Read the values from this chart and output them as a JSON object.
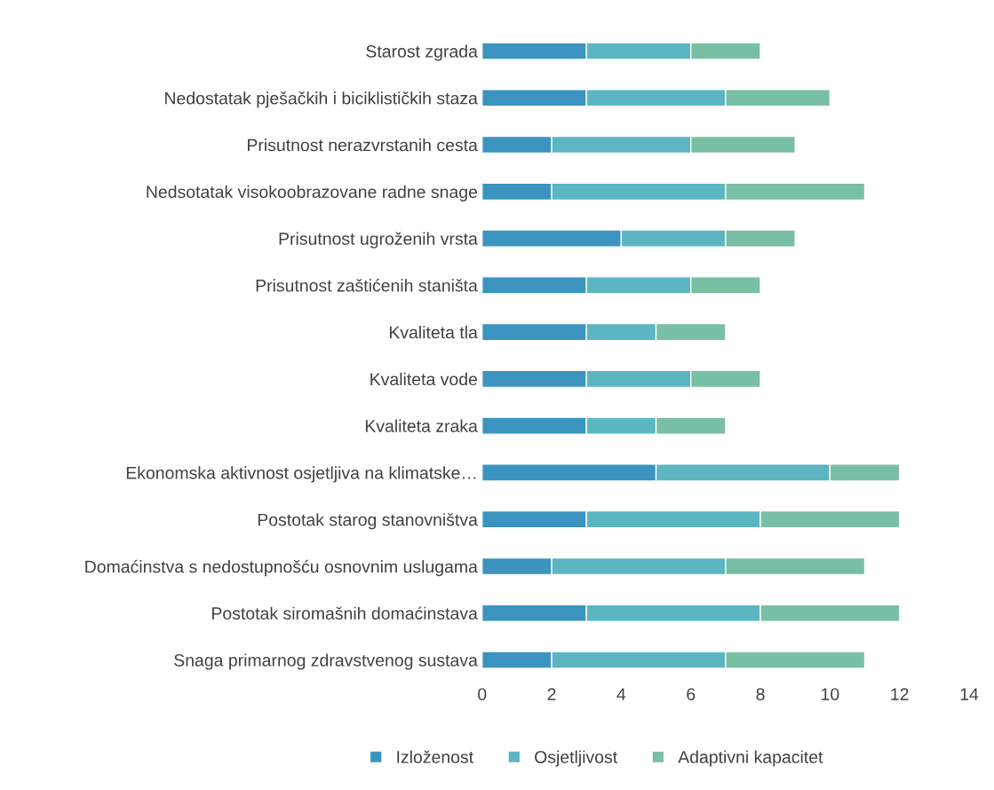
{
  "chart_data": {
    "type": "bar",
    "orientation": "horizontal",
    "stacked": true,
    "categories": [
      "Starost zgrada",
      "Nedostatak pješačkih i biciklističkih staza",
      "Prisutnost nerazvrstanih cesta",
      "Nedsotatak visokoobrazovane radne snage",
      "Prisutnost ugroženih vrsta",
      "Prisutnost zaštićenih staništa",
      "Kvaliteta tla",
      "Kvaliteta vode",
      "Kvaliteta zraka",
      "Ekonomska aktivnost osjetljiva na klimatske…",
      "Postotak starog stanovništva",
      "Domaćinstva s nedostupnošću osnovnim uslugama",
      "Postotak siromašnih domaćinstava",
      "Snaga primarnog zdravstvenog sustava"
    ],
    "series": [
      {
        "name": "Izloženost",
        "color": "#3a94bf",
        "values": [
          3,
          3,
          2,
          2,
          4,
          3,
          3,
          3,
          3,
          5,
          3,
          2,
          3,
          2
        ]
      },
      {
        "name": "Osjetljivost",
        "color": "#5bb6c2",
        "values": [
          3,
          4,
          4,
          5,
          3,
          3,
          2,
          3,
          2,
          5,
          5,
          5,
          5,
          5
        ]
      },
      {
        "name": "Adaptivni kapacitet",
        "color": "#79bfa3",
        "values": [
          2,
          3,
          3,
          4,
          2,
          2,
          2,
          2,
          2,
          2,
          4,
          4,
          4,
          4
        ]
      }
    ],
    "xlim": [
      0,
      14
    ],
    "xticks": [
      0,
      2,
      4,
      6,
      8,
      10,
      12,
      14
    ],
    "grid": false,
    "legend": "bottom"
  }
}
